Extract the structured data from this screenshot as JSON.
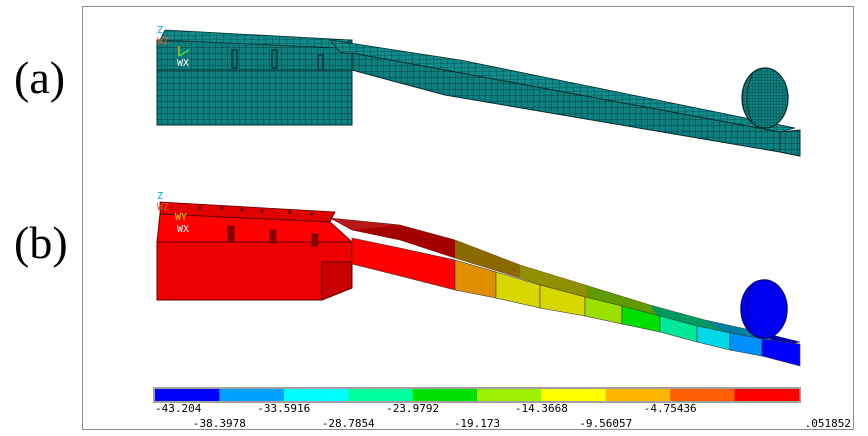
{
  "panels": {
    "a": {
      "label": "(a)"
    },
    "b": {
      "label": "(b)"
    }
  },
  "triad": {
    "axis_z": "Z",
    "axis_wz": "WZ",
    "axis_wx": "WX",
    "axis_wy": "WY"
  },
  "colorbar": {
    "upper_ticks": [
      "-43.204",
      "-33.5916",
      "-23.9792",
      "-14.3668",
      "-4.75436"
    ],
    "lower_ticks": [
      "-38.3978",
      "-28.7854",
      "-19.173",
      "-9.56057",
      ".051852"
    ],
    "bin_colors": [
      "#0000ff",
      "#00a2ff",
      "#00ffff",
      "#00ff9e",
      "#00e000",
      "#9cf000",
      "#ffff00",
      "#ffb400",
      "#ff5f00",
      "#ff0000"
    ]
  },
  "contour_bands": {
    "colors_along_beam": [
      "#ff0000",
      "#e08f00",
      "#d8d800",
      "#9be000",
      "#00e000",
      "#00e89a",
      "#00d8e8",
      "#0090ff",
      "#0000ff"
    ]
  },
  "colors": {
    "mesh_face": "#0e7f7f",
    "mesh_line": "#022b2b",
    "frame": "#8c8c8c"
  }
}
